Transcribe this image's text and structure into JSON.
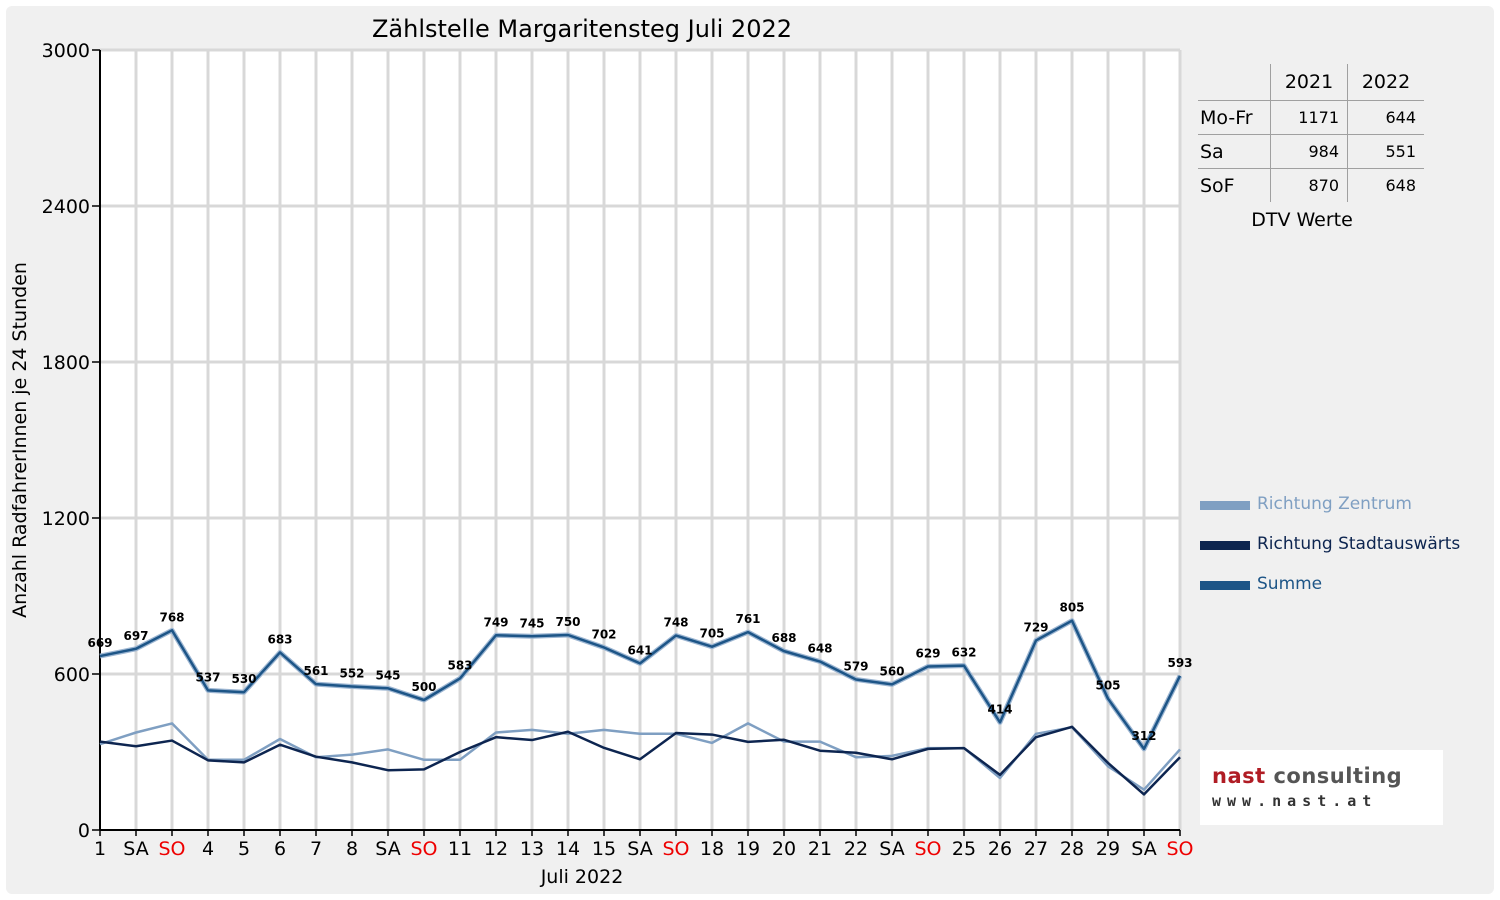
{
  "chart_data": {
    "type": "line",
    "title": "Zählstelle Margaritensteg Juli 2022",
    "xlabel": "Juli 2022",
    "ylabel": "Anzahl RadfahrerInnen je 24 Stunden",
    "ylim": [
      0,
      3000
    ],
    "yticks": [
      0,
      600,
      1200,
      1800,
      2400,
      3000
    ],
    "grid": true,
    "legend_position": "right",
    "x": [
      1,
      2,
      3,
      4,
      5,
      6,
      7,
      8,
      9,
      10,
      11,
      12,
      13,
      14,
      15,
      16,
      17,
      18,
      19,
      20,
      21,
      22,
      23,
      24,
      25,
      26,
      27,
      28,
      29,
      30,
      31
    ],
    "categories": [
      "1",
      "SA",
      "SO",
      "4",
      "5",
      "6",
      "7",
      "8",
      "SA",
      "SO",
      "11",
      "12",
      "13",
      "14",
      "15",
      "SA",
      "SO",
      "18",
      "19",
      "20",
      "21",
      "22",
      "SA",
      "SO",
      "25",
      "26",
      "27",
      "28",
      "29",
      "SA",
      "SO"
    ],
    "category_colors": [
      "#000000",
      "#000000",
      "#ee0000",
      "#000000",
      "#000000",
      "#000000",
      "#000000",
      "#000000",
      "#000000",
      "#ee0000",
      "#000000",
      "#000000",
      "#000000",
      "#000000",
      "#000000",
      "#000000",
      "#ee0000",
      "#000000",
      "#000000",
      "#000000",
      "#000000",
      "#000000",
      "#000000",
      "#ee0000",
      "#000000",
      "#000000",
      "#000000",
      "#000000",
      "#000000",
      "#000000",
      "#ee0000"
    ],
    "series": [
      {
        "name": "Richtung Zentrum",
        "color": "#7f9fc2",
        "values": [
          330,
          375,
          410,
          270,
          270,
          350,
          280,
          290,
          310,
          270,
          270,
          375,
          385,
          370,
          385,
          370,
          370,
          335,
          410,
          340,
          340,
          280,
          285,
          315,
          315,
          200,
          370,
          395,
          245,
          155,
          310
        ]
      },
      {
        "name": "Richtung Stadtauswärts",
        "color": "#0d2550",
        "values": [
          340,
          322,
          344,
          268,
          260,
          328,
          282,
          260,
          230,
          233,
          300,
          357,
          346,
          378,
          316,
          272,
          373,
          367,
          339,
          347,
          305,
          297,
          272,
          312,
          315,
          212,
          357,
          397,
          258,
          137,
          280
        ]
      },
      {
        "name": "Summe",
        "color": "#1d5587",
        "values": [
          669,
          697,
          768,
          537,
          530,
          683,
          561,
          552,
          545,
          500,
          583,
          749,
          745,
          750,
          702,
          641,
          748,
          705,
          761,
          688,
          648,
          579,
          560,
          629,
          632,
          414,
          729,
          805,
          505,
          312,
          593
        ],
        "labels": [
          "669",
          "697",
          "768",
          "537",
          "530",
          "683",
          "561",
          "552",
          "545",
          "500",
          "583",
          "749",
          "745",
          "750",
          "702",
          "641",
          "748",
          "705",
          "761",
          "688",
          "648",
          "579",
          "560",
          "629",
          "632",
          "414",
          "729",
          "805",
          "505",
          "312",
          "593"
        ]
      }
    ]
  },
  "dtv_table": {
    "columns": [
      "",
      "2021",
      "2022"
    ],
    "rows": [
      {
        "label": "Mo-Fr",
        "v2021": "1171",
        "v2022": "644"
      },
      {
        "label": "Sa",
        "v2021": "984",
        "v2022": "551"
      },
      {
        "label": "SoF",
        "v2021": "870",
        "v2022": "648"
      }
    ],
    "caption": "DTV Werte"
  },
  "logo": {
    "name_part1": "nast",
    "name_part2": "consulting",
    "url": "www.nast.at"
  }
}
